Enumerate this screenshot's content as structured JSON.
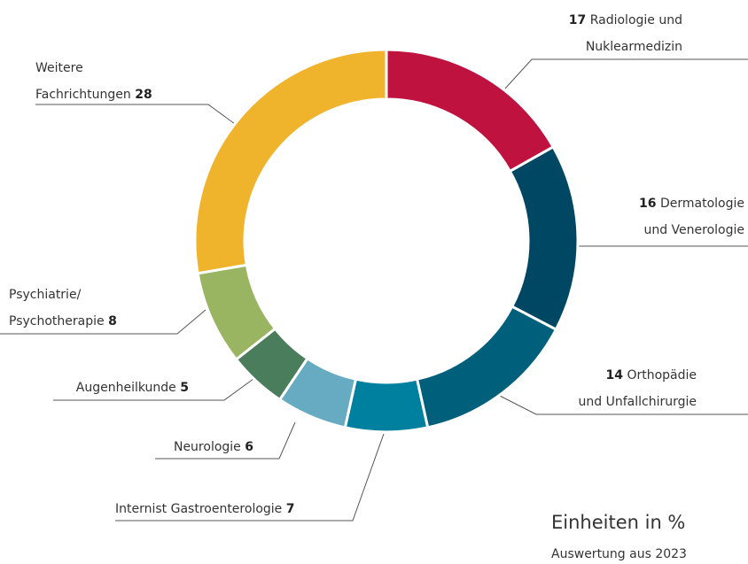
{
  "chart_data": {
    "type": "donut",
    "categories": [
      "Radiologie und\nNuklearmedizin",
      "Dermatologie\nund Venerologie",
      "Orthopädie\nund Unfallchirurgie",
      "Internist Gastroenterologie",
      "Neurologie",
      "Augenheilkunde",
      "Psychiatrie/\nPsychotherapie",
      "Weitere\nFachrichtungen"
    ],
    "values": [
      17,
      16,
      14,
      7,
      6,
      5,
      8,
      28
    ],
    "colors": [
      "#c0123f",
      "#004764",
      "#005f7a",
      "#00809f",
      "#67abc3",
      "#4a7d5b",
      "#9ab562",
      "#f0b32c"
    ],
    "unit_note": "Einheiten in %",
    "source_note": "Auswertung aus 2023"
  }
}
